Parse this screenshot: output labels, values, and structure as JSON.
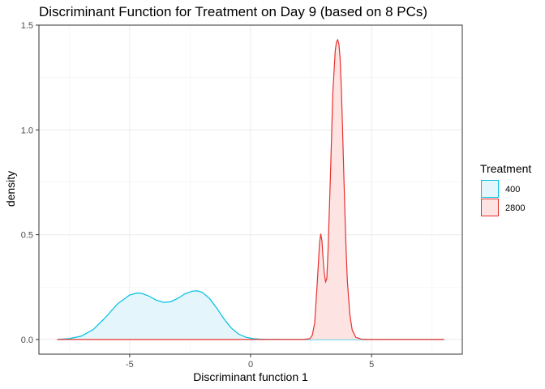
{
  "chart_data": {
    "type": "area",
    "title": "Discriminant Function for Treatment on Day 9 (based on 8 PCs)",
    "xlabel": "Discriminant function 1",
    "ylabel": "density",
    "xlim": [
      -8.75,
      8.75
    ],
    "ylim": [
      -0.07,
      1.5
    ],
    "xticks": [
      -5,
      0,
      5
    ],
    "xtick_labels": [
      "-5",
      "0",
      "5"
    ],
    "yticks": [
      0.0,
      0.5,
      1.0,
      1.5
    ],
    "ytick_labels": [
      "0.0",
      "0.5",
      "1.0",
      "1.5"
    ],
    "grid": true,
    "legend": {
      "title": "Treatment",
      "position": "right"
    },
    "series": [
      {
        "name": "400",
        "color": "#00BFE4",
        "fill": "#E4F6FB",
        "x": [
          -8.0,
          -7.5,
          -7.0,
          -6.5,
          -6.0,
          -5.5,
          -5.0,
          -4.7,
          -4.5,
          -4.2,
          -3.9,
          -3.6,
          -3.3,
          -3.0,
          -2.7,
          -2.4,
          -2.2,
          -2.0,
          -1.7,
          -1.4,
          -1.1,
          -0.8,
          -0.5,
          -0.2,
          0.1,
          0.4,
          0.8,
          1.5,
          3.0,
          5.0,
          8.0
        ],
        "values": [
          0.0,
          0.004,
          0.016,
          0.048,
          0.105,
          0.17,
          0.212,
          0.222,
          0.22,
          0.207,
          0.188,
          0.177,
          0.18,
          0.197,
          0.219,
          0.231,
          0.232,
          0.225,
          0.196,
          0.15,
          0.098,
          0.055,
          0.026,
          0.011,
          0.004,
          0.0015,
          0.0005,
          0.0,
          0.0,
          0.0,
          0.0
        ]
      },
      {
        "name": "2800",
        "color": "#E8302E",
        "fill": "#FDE3E2",
        "x": [
          -8.0,
          -2.0,
          0.0,
          2.2,
          2.45,
          2.55,
          2.65,
          2.75,
          2.85,
          2.9,
          2.95,
          3.0,
          3.05,
          3.1,
          3.15,
          3.2,
          3.3,
          3.4,
          3.5,
          3.55,
          3.6,
          3.65,
          3.7,
          3.75,
          3.8,
          3.85,
          3.9,
          3.95,
          4.0,
          4.1,
          4.2,
          4.35,
          4.6,
          5.0,
          8.0
        ],
        "values": [
          0.0,
          0.0,
          0.0,
          0.0,
          0.004,
          0.02,
          0.08,
          0.26,
          0.46,
          0.505,
          0.47,
          0.38,
          0.31,
          0.275,
          0.29,
          0.42,
          0.78,
          1.18,
          1.38,
          1.42,
          1.43,
          1.41,
          1.34,
          1.2,
          1.01,
          0.8,
          0.6,
          0.42,
          0.28,
          0.12,
          0.045,
          0.01,
          0.001,
          0.0,
          0.0
        ]
      }
    ]
  }
}
